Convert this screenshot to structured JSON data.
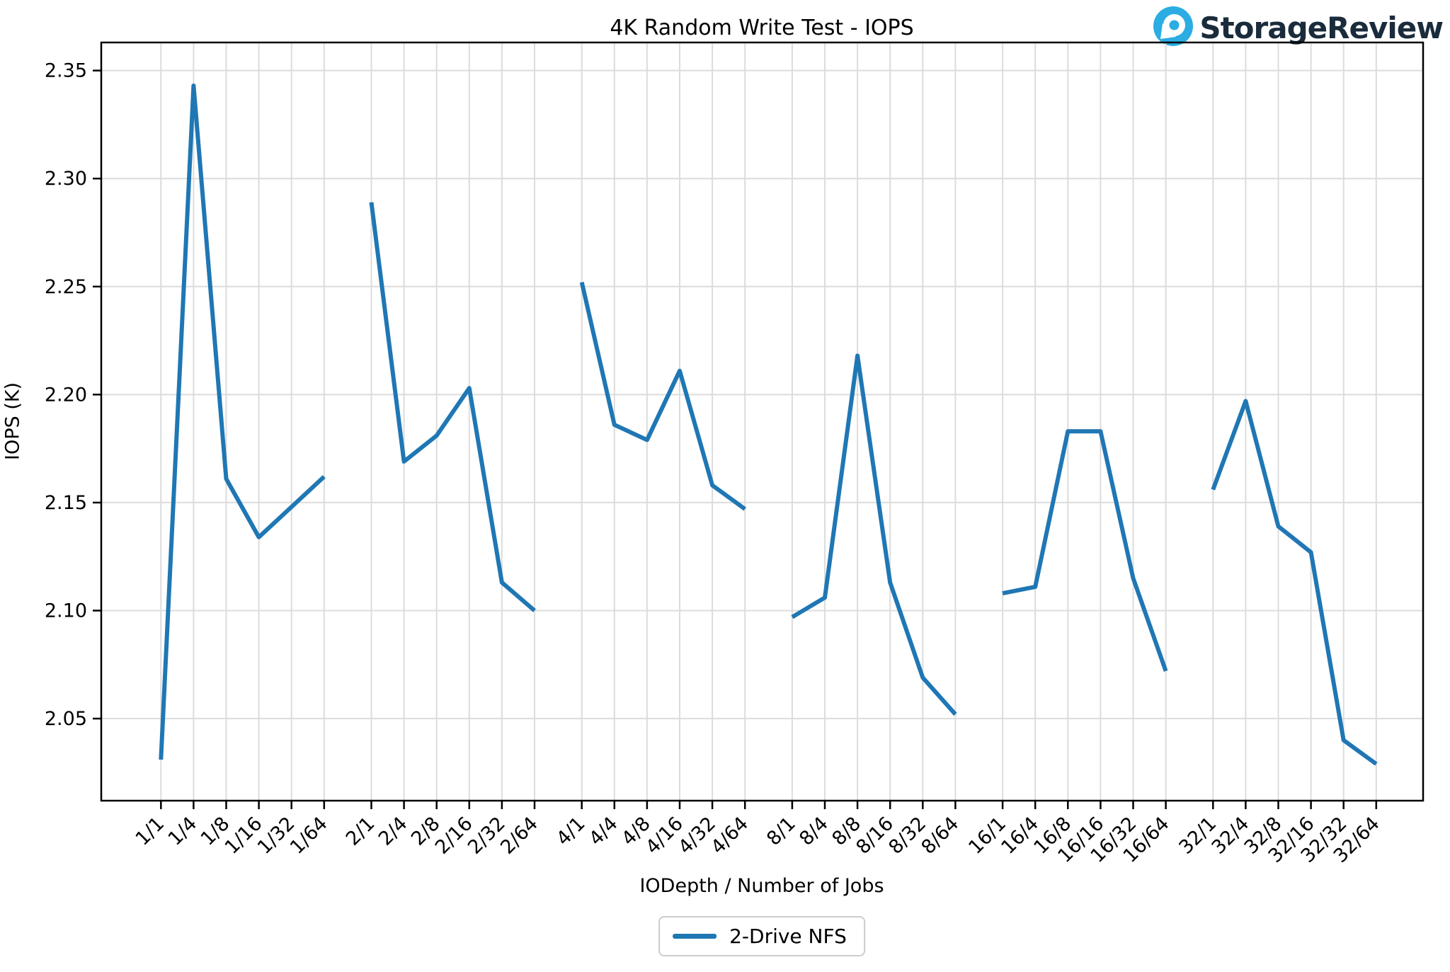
{
  "title": "4K Random Write Test - IOPS",
  "logo": {
    "text": "StorageReview",
    "icon": "storagereview-droplet-icon",
    "icon_color": "#2bace2",
    "text_color": "#1a2b3c"
  },
  "legend": {
    "label": "2-Drive NFS",
    "line_color": "#1f77b4"
  },
  "colors": {
    "series_blue": "#1f77b4",
    "gridline": "#dcdcdc",
    "axis": "#000000",
    "background": "#ffffff"
  },
  "chart_data": {
    "type": "line",
    "title": "4K Random Write Test - IOPS",
    "xlabel": "IODepth / Number of Jobs",
    "ylabel": "IOPS (K)",
    "ylim": [
      2.012,
      2.363
    ],
    "y_ticks": [
      2.05,
      2.1,
      2.15,
      2.2,
      2.25,
      2.3,
      2.35
    ],
    "y_tick_labels": [
      "2.05",
      "2.10",
      "2.15",
      "2.20",
      "2.25",
      "2.30",
      "2.35"
    ],
    "grid": true,
    "legend_position": "bottom-center",
    "gap_between_groups": true,
    "series": [
      {
        "name": "2-Drive NFS",
        "color": "#1f77b4",
        "groups": [
          {
            "labels": [
              "1/1",
              "1/4",
              "1/8",
              "1/16",
              "1/32",
              "1/64"
            ],
            "values": [
              2.031,
              2.343,
              2.161,
              2.134,
              2.148,
              2.162
            ]
          },
          {
            "labels": [
              "2/1",
              "2/4",
              "2/8",
              "2/16",
              "2/32",
              "2/64"
            ],
            "values": [
              2.289,
              2.169,
              2.181,
              2.203,
              2.113,
              2.1
            ]
          },
          {
            "labels": [
              "4/1",
              "4/4",
              "4/8",
              "4/16",
              "4/32",
              "4/64"
            ],
            "values": [
              2.252,
              2.186,
              2.179,
              2.211,
              2.158,
              2.147
            ]
          },
          {
            "labels": [
              "8/1",
              "8/4",
              "8/8",
              "8/16",
              "8/32",
              "8/64"
            ],
            "values": [
              2.097,
              2.106,
              2.218,
              2.113,
              2.069,
              2.052
            ]
          },
          {
            "labels": [
              "16/1",
              "16/4",
              "16/8",
              "16/16",
              "16/32",
              "16/64"
            ],
            "values": [
              2.108,
              2.111,
              2.183,
              2.183,
              2.115,
              2.072
            ]
          },
          {
            "labels": [
              "32/1",
              "32/4",
              "32/8",
              "32/16",
              "32/32",
              "32/64"
            ],
            "values": [
              2.156,
              2.197,
              2.139,
              2.127,
              2.04,
              2.029
            ]
          }
        ]
      }
    ]
  }
}
